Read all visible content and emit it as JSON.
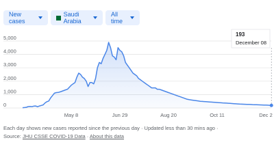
{
  "controls": {
    "metric": "New cases",
    "location": "Saudi Arabia",
    "range": "All time"
  },
  "chart_data": {
    "type": "line",
    "color": "#4a86e8",
    "grid": true,
    "ylim": [
      0,
      5000
    ],
    "yticks": [
      0,
      {
        "value": 1000,
        "label": "1,000"
      },
      {
        "value": 2000,
        "label": "2,000"
      },
      {
        "value": 3000,
        "label": "3,000"
      },
      {
        "value": 4000,
        "label": "4,000"
      },
      {
        "value": 5000,
        "label": "5,000"
      }
    ],
    "categories": [
      null,
      null,
      null,
      null,
      null,
      null,
      null,
      null,
      null,
      null,
      null,
      null,
      null,
      null,
      null,
      null,
      null,
      null,
      null,
      null,
      null,
      null,
      null,
      null,
      null,
      null,
      "May 8",
      null,
      null,
      null,
      null,
      null,
      null,
      null,
      null,
      null,
      null,
      null,
      null,
      null,
      null,
      null,
      null,
      null,
      null,
      null,
      null,
      null,
      null,
      null,
      null,
      null,
      "Jun 29",
      null,
      null,
      null,
      null,
      null,
      null,
      null,
      null,
      null,
      null,
      null,
      null,
      null,
      null,
      null,
      null,
      null,
      null,
      null,
      null,
      null,
      null,
      null,
      null,
      null,
      "Aug 20",
      null,
      null,
      null,
      null,
      null,
      null,
      null,
      null,
      null,
      null,
      null,
      null,
      null,
      null,
      null,
      null,
      null,
      null,
      null,
      null,
      null,
      null,
      null,
      null,
      null,
      "Oct 11",
      null,
      null,
      null,
      null,
      null,
      null,
      null,
      null,
      null,
      null,
      null,
      null,
      null,
      null,
      null,
      null,
      null,
      null,
      null,
      null,
      null,
      null,
      null,
      null,
      null,
      "Dec 2",
      null,
      null,
      null
    ],
    "values": [
      20,
      30,
      50,
      100,
      110,
      100,
      140,
      150,
      90,
      150,
      190,
      230,
      380,
      470,
      520,
      760,
      930,
      1100,
      1150,
      1160,
      1200,
      1250,
      1300,
      1350,
      1400,
      1550,
      1700,
      1800,
      1900,
      2300,
      2600,
      2500,
      2300,
      2200,
      2000,
      1600,
      1900,
      1900,
      1800,
      2200,
      3000,
      3400,
      3300,
      3700,
      4000,
      4300,
      4900,
      4500,
      3900,
      3800,
      3600,
      4500,
      4300,
      4200,
      3900,
      3400,
      3200,
      3000,
      2800,
      2600,
      2500,
      2400,
      2200,
      2100,
      2000,
      1900,
      1800,
      1700,
      1600,
      1500,
      1500,
      1500,
      1400,
      1400,
      1350,
      1300,
      1250,
      1200,
      1150,
      1100,
      1050,
      1000,
      950,
      900,
      850,
      800,
      750,
      700,
      650,
      620,
      600,
      580,
      560,
      540,
      520,
      500,
      490,
      480,
      470,
      460,
      450,
      440,
      430,
      420,
      410,
      400,
      390,
      380,
      370,
      360,
      350,
      340,
      330,
      320,
      310,
      300,
      290,
      285,
      280,
      275,
      270,
      265,
      260,
      250,
      245,
      240,
      235,
      230,
      225,
      220,
      215,
      210,
      200,
      193
    ],
    "tooltip_date": "December 08"
  },
  "footer": {
    "note": "Each day shows new cases reported since the previous day · Updated less than 30 mins ago ·",
    "source_label": "Source:",
    "source_link": "JHU CSSE COVID-19 Data",
    "separator": "·",
    "about_link": "About this data"
  }
}
